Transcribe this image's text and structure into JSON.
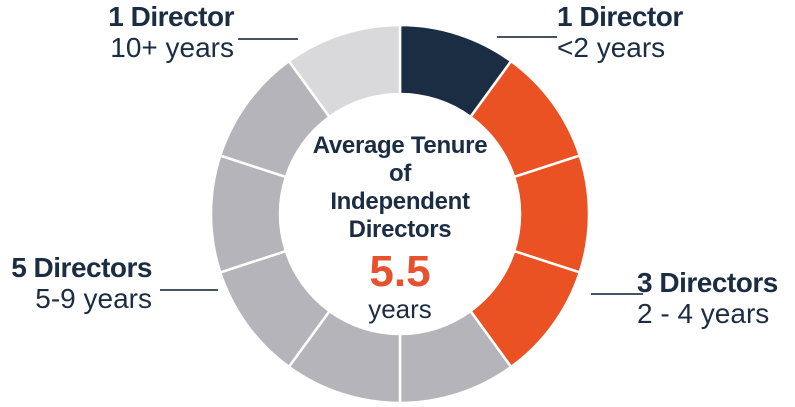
{
  "colors": {
    "background": "#ffffff",
    "text_navy": "#1b2d42",
    "value_orange": "#e8512e",
    "leader_line": "#465362",
    "separator": "#ffffff"
  },
  "chart_data": {
    "type": "donut",
    "title": "Average Tenure of Independent Directors",
    "center": {
      "title_lines": "Average Tenure\nof\nIndependent\nDirectors",
      "value": "5.5",
      "unit": "years"
    },
    "total_segments": 10,
    "geometry": {
      "start_angle_deg": 0,
      "direction": "clockwise",
      "equal_slices": true
    },
    "groups": [
      {
        "label": "1 Director",
        "range": "<2 years",
        "count": 1,
        "color": "#1b2d42",
        "label_position": "top-right"
      },
      {
        "label": "3 Directors",
        "range": "2 - 4 years",
        "count": 3,
        "color": "#ea5224",
        "label_position": "bottom-right"
      },
      {
        "label": "5 Directors",
        "range": "5-9 years",
        "count": 5,
        "color": "#b4b4ba",
        "label_position": "bottom-left"
      },
      {
        "label": "1 Director",
        "range": "10+ years",
        "count": 1,
        "color": "#d9d9dc",
        "label_position": "top-left"
      }
    ]
  }
}
